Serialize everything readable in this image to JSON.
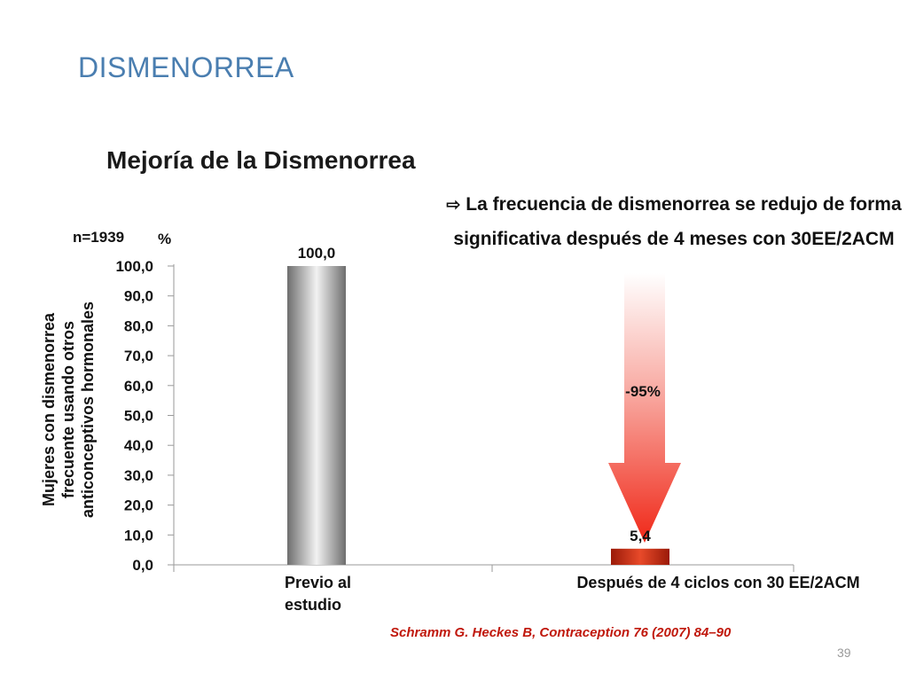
{
  "slide": {
    "title": "DISMENORREA",
    "page_number": "39",
    "citation": "Schramm G. Heckes B, Contraception 76 (2007) 84–90"
  },
  "note": {
    "arrow_icon": "right-arrow-icon",
    "text": "La frecuencia de dismenorrea se redujo de forma significativa después de 4 meses con 30EE/2ACM"
  },
  "colors": {
    "title_blue": "#4a7eb0",
    "citation_red": "#c0180c",
    "bar_grey": "#8a8a8a",
    "bar_red": "#c02410",
    "arrow_red": "#f03020"
  },
  "chart_data": {
    "type": "bar",
    "title": "Mejoría de la Dismenorrea",
    "sample_label": "n=1939",
    "unit_label": "%",
    "ylabel": "Mujeres con dismenorrea frecuente usando otros anticonceptivos hormonales",
    "xlabel": "",
    "ylim": [
      0,
      100
    ],
    "yticks": [
      "0,0",
      "10,0",
      "20,0",
      "30,0",
      "40,0",
      "50,0",
      "60,0",
      "70,0",
      "80,0",
      "90,0",
      "100,0"
    ],
    "categories": [
      [
        "Previo al",
        "estudio"
      ],
      [
        "Después de 4 ciclos con 30 EE/2ACM"
      ]
    ],
    "values": [
      100.0,
      5.4
    ],
    "value_labels": [
      "100,0",
      "5,4"
    ],
    "annotation": {
      "text": "-95%",
      "description": "arrow-down",
      "from_value": 100.0,
      "to_value": 5.4
    },
    "grid": false,
    "legend": "none"
  }
}
